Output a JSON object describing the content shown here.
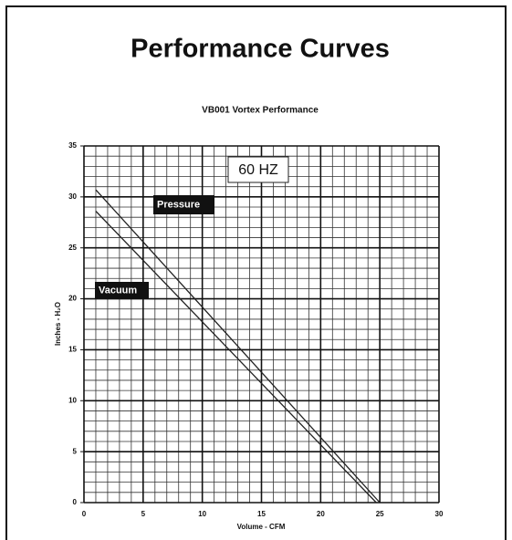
{
  "chart_data": {
    "type": "line",
    "title": "Performance Curves",
    "subtitle": "VB001 Vortex Performance",
    "x_label": "Volume - CFM",
    "y_label": "Inches - H₂O",
    "annotations": [
      "60 HZ"
    ],
    "series": [
      {
        "name": "Pressure",
        "color": "#222222",
        "x": [
          1,
          25
        ],
        "values": [
          30.7,
          0
        ]
      },
      {
        "name": "Vacuum",
        "color": "#222222",
        "x": [
          1,
          24.7
        ],
        "values": [
          28.6,
          0
        ]
      }
    ],
    "xlim": [
      0,
      30
    ],
    "xticks": [
      0,
      5,
      10,
      15,
      20,
      25,
      30
    ],
    "ylim": [
      0,
      35
    ],
    "yticks": [
      0,
      5,
      10,
      15,
      20,
      25,
      30,
      35
    ],
    "grid": true
  }
}
